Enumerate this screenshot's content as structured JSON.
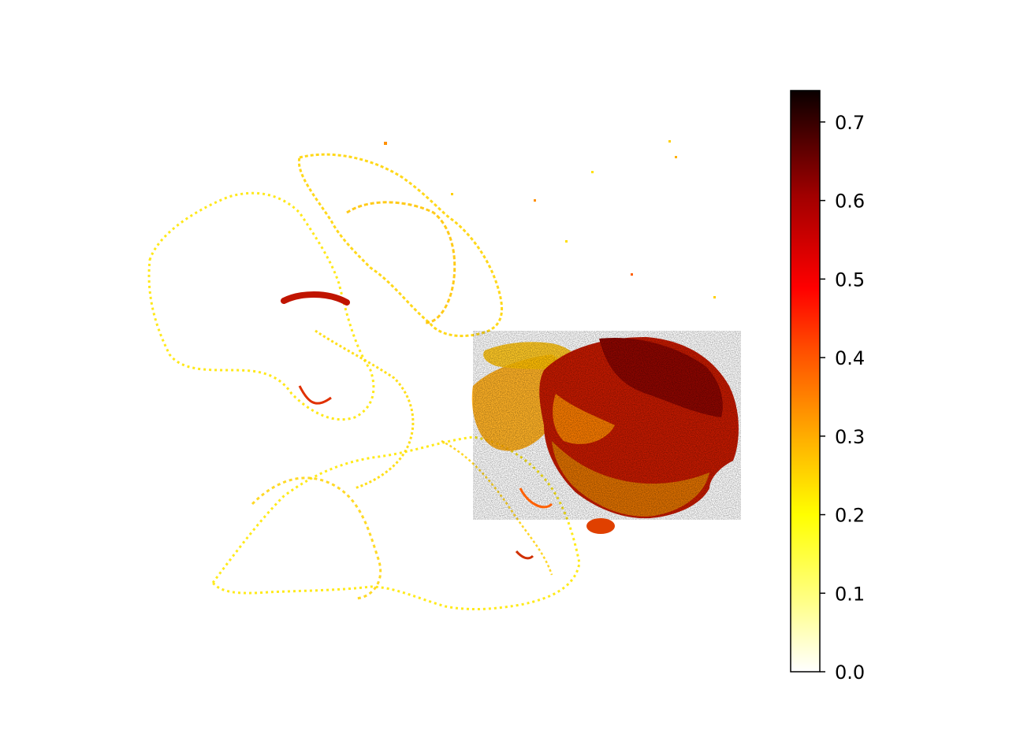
{
  "chart_data": {
    "type": "heatmap",
    "title": "",
    "xlabel": "",
    "ylabel": "",
    "axes_visible": false,
    "colormap": "hot_r",
    "colorbar": {
      "orientation": "vertical",
      "placement": "right",
      "range": [
        0.0,
        0.74
      ],
      "ticks": [
        0.0,
        0.1,
        0.2,
        0.3,
        0.4,
        0.5,
        0.6,
        0.7
      ],
      "tick_labels": [
        "0.0",
        "0.1",
        "0.2",
        "0.3",
        "0.4",
        "0.5",
        "0.6",
        "0.7"
      ]
    },
    "description": "Spatial intensity map of a tissue section; low values (yellow) along tissue outlines on the left, high values (dark red) concentrated in a dense region on the right.",
    "grid": false,
    "legend": "none"
  }
}
